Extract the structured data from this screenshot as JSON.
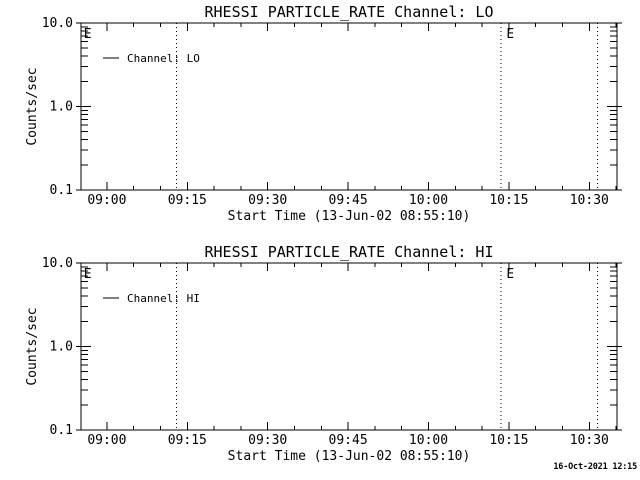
{
  "window": {
    "background": "#ffffff",
    "foreground": "#000000"
  },
  "footer": {
    "generated_timestamp": "16-Oct-2021 12:15"
  },
  "chart_data": [
    {
      "type": "line",
      "title": "RHESSI PARTICLE_RATE Channel: LO",
      "xlabel": "Start Time (13-Jun-02 08:55:10)",
      "ylabel": "Counts/sec",
      "x_start": "08:55:10",
      "x_end": "10:35:10",
      "x_major_ticks": [
        "09:00",
        "09:15",
        "09:30",
        "09:45",
        "10:00",
        "10:15",
        "10:30"
      ],
      "x_minor_step_minutes": 5,
      "y_scale": "log",
      "ylim": [
        0.1,
        10.0
      ],
      "y_major_ticks": [
        {
          "value": 10.0,
          "label": "10.0"
        },
        {
          "value": 1.0,
          "label": "1.0"
        },
        {
          "value": 0.1,
          "label": "0.1"
        }
      ],
      "grid": "off",
      "legend": {
        "position": "upper-left-inside",
        "label": "Channel: LO"
      },
      "series": [
        {
          "name": "Channel: LO",
          "points": []
        }
      ],
      "event_lines": [
        {
          "time": "09:13:00",
          "style": "dotted"
        },
        {
          "time": "10:13:30",
          "style": "dotted"
        },
        {
          "time": "10:31:30",
          "style": "dotted"
        }
      ],
      "annotations": [
        {
          "label": "E",
          "time": "08:55:30"
        },
        {
          "label": "E",
          "time": "10:14:20"
        }
      ]
    },
    {
      "type": "line",
      "title": "RHESSI PARTICLE_RATE Channel: HI",
      "xlabel": "Start Time (13-Jun-02 08:55:10)",
      "ylabel": "Counts/sec",
      "x_start": "08:55:10",
      "x_end": "10:35:10",
      "x_major_ticks": [
        "09:00",
        "09:15",
        "09:30",
        "09:45",
        "10:00",
        "10:15",
        "10:30"
      ],
      "x_minor_step_minutes": 5,
      "y_scale": "log",
      "ylim": [
        0.1,
        10.0
      ],
      "y_major_ticks": [
        {
          "value": 10.0,
          "label": "10.0"
        },
        {
          "value": 1.0,
          "label": "1.0"
        },
        {
          "value": 0.1,
          "label": "0.1"
        }
      ],
      "grid": "off",
      "legend": {
        "position": "upper-left-inside",
        "label": "Channel: HI"
      },
      "series": [
        {
          "name": "Channel: HI",
          "points": []
        }
      ],
      "event_lines": [
        {
          "time": "09:13:00",
          "style": "dotted"
        },
        {
          "time": "10:13:30",
          "style": "dotted"
        },
        {
          "time": "10:31:30",
          "style": "dotted"
        }
      ],
      "annotations": [
        {
          "label": "E",
          "time": "08:55:30"
        },
        {
          "label": "E",
          "time": "10:14:20"
        }
      ]
    }
  ]
}
